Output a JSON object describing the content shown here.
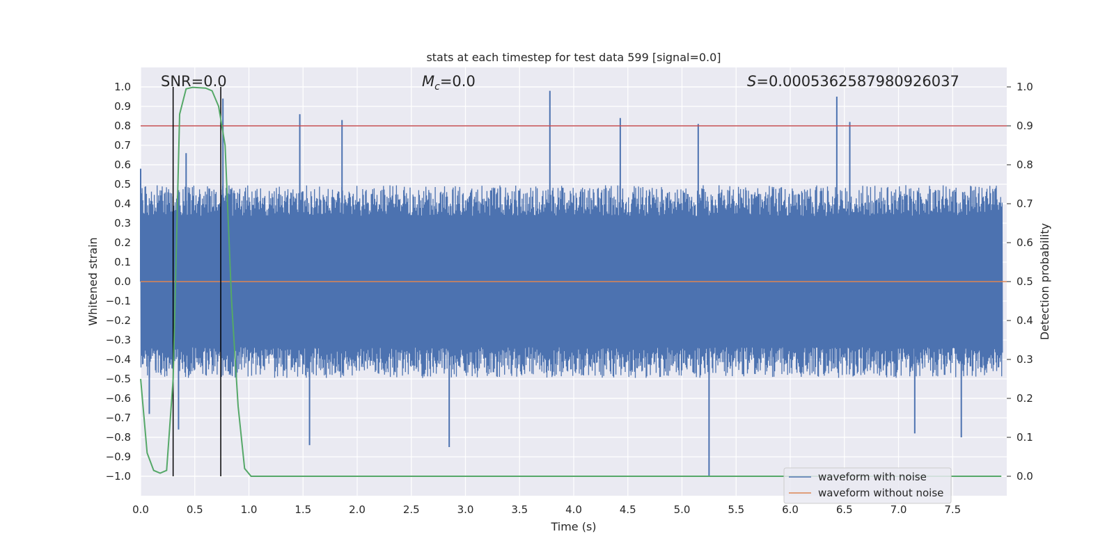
{
  "chart_data": {
    "type": "line",
    "title": "stats at each timestep for test data 599 [signal=0.0]",
    "xlabel": "Time (s)",
    "ylabel": "Whitened strain",
    "y2label": "Detection probability",
    "xlim": [
      0.0,
      8.0
    ],
    "ylim": [
      -1.1,
      1.1
    ],
    "y2lim": [
      -0.05,
      1.05
    ],
    "x_ticks": [
      0.0,
      0.5,
      1.0,
      1.5,
      2.0,
      2.5,
      3.0,
      3.5,
      4.0,
      4.5,
      5.0,
      5.5,
      6.0,
      6.5,
      7.0,
      7.5
    ],
    "x_tick_labels": [
      "0.0",
      "0.5",
      "1.0",
      "1.5",
      "2.0",
      "2.5",
      "3.0",
      "3.5",
      "4.0",
      "4.5",
      "5.0",
      "5.5",
      "6.0",
      "6.5",
      "7.0",
      "7.5"
    ],
    "y_ticks": [
      1.0,
      0.9,
      0.8,
      0.7,
      0.6,
      0.5,
      0.4,
      0.3,
      0.2,
      0.1,
      0.0,
      -0.1,
      -0.2,
      -0.3,
      -0.4,
      -0.5,
      -0.6,
      -0.7,
      -0.8,
      -0.9,
      -1.0
    ],
    "y_tick_labels": [
      "1.0",
      "0.9",
      "0.8",
      "0.7",
      "0.6",
      "0.5",
      "0.4",
      "0.3",
      "0.2",
      "0.1",
      "0.0",
      "−0.1",
      "−0.2",
      "−0.3",
      "−0.4",
      "−0.5",
      "−0.6",
      "−0.7",
      "−0.8",
      "−0.9",
      "−1.0"
    ],
    "y2_ticks": [
      1.0,
      0.9,
      0.8,
      0.7,
      0.6,
      0.5,
      0.4,
      0.3,
      0.2,
      0.1,
      0.0
    ],
    "y2_tick_labels": [
      "1.0",
      "0.9",
      "0.8",
      "0.7",
      "0.6",
      "0.5",
      "0.4",
      "0.3",
      "0.2",
      "0.1",
      "0.0"
    ],
    "grid": true,
    "annotations": [
      {
        "text": "SNR=0.0",
        "x": 0.2,
        "y": 1.0
      },
      {
        "text_main": "M",
        "text_sub": "c",
        "text_rest": "=0.0",
        "x": 2.6,
        "y": 1.0
      },
      {
        "text_main": "S",
        "text_rest": "=0.000536258798092603​7",
        "x": 5.6,
        "y": 1.0
      }
    ],
    "annotation_labels": {
      "snr": "SNR=0.0",
      "mc_rest": "=0.0",
      "s_rest": "=0.0005362587980926037",
      "mc_main": "M",
      "mc_sub": "c",
      "s_main": "S"
    },
    "series": [
      {
        "name": "waveform with noise",
        "color": "#4c72b0",
        "axis": "left",
        "kind": "noise",
        "amplitude_core": 0.45,
        "peaks": [
          [
            0.0,
            0.58
          ],
          [
            0.42,
            0.66
          ],
          [
            0.76,
            0.94
          ],
          [
            1.47,
            0.86
          ],
          [
            1.86,
            0.83
          ],
          [
            3.78,
            0.98
          ],
          [
            4.43,
            0.84
          ],
          [
            5.15,
            0.81
          ],
          [
            6.43,
            0.95
          ],
          [
            6.55,
            0.82
          ],
          [
            0.08,
            -0.68
          ],
          [
            0.35,
            -0.76
          ],
          [
            1.56,
            -0.84
          ],
          [
            2.85,
            -0.85
          ],
          [
            5.25,
            -1.0
          ],
          [
            7.15,
            -0.78
          ],
          [
            7.58,
            -0.8
          ]
        ]
      },
      {
        "name": "waveform without noise",
        "color": "#dd8452",
        "axis": "left",
        "values": [
          0.0,
          0.0
        ]
      },
      {
        "name": "detection probability",
        "color": "#55a868",
        "axis": "right",
        "x": [
          0.0,
          0.06,
          0.12,
          0.18,
          0.24,
          0.3,
          0.36,
          0.42,
          0.48,
          0.6,
          0.66,
          0.72,
          0.78,
          0.84,
          0.9,
          0.96,
          1.02,
          1.5,
          2.0,
          3.0,
          4.0,
          5.0,
          6.0,
          7.0,
          7.95
        ],
        "values": [
          0.25,
          0.06,
          0.015,
          0.008,
          0.015,
          0.25,
          0.93,
          0.995,
          0.999,
          0.997,
          0.99,
          0.95,
          0.85,
          0.45,
          0.18,
          0.02,
          0.0,
          0.0,
          0.0,
          0.0,
          0.0,
          0.0,
          0.0,
          0.0,
          0.0
        ]
      },
      {
        "name": "threshold",
        "color": "#c44e52",
        "axis": "right",
        "values": [
          0.9,
          0.9
        ]
      }
    ],
    "vertical_lines": [
      0.3,
      0.74
    ],
    "legend": {
      "position": "lower-right",
      "entries": [
        "waveform with noise",
        "waveform without noise"
      ]
    }
  }
}
